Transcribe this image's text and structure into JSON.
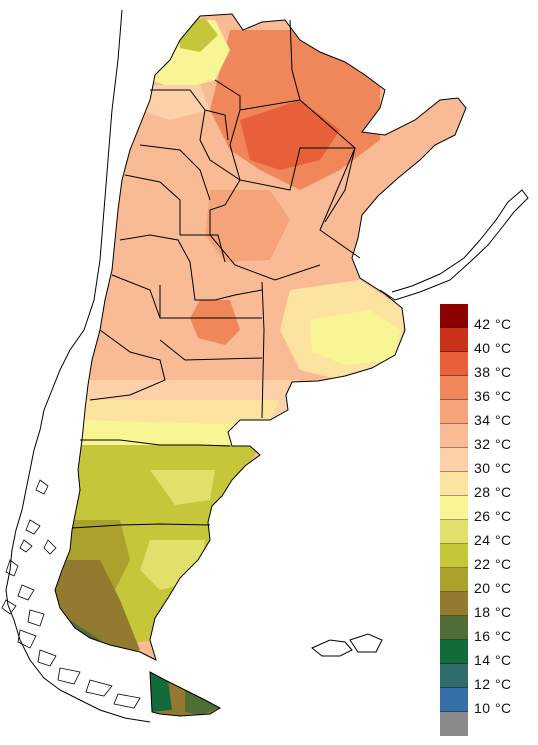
{
  "legend": {
    "items": [
      {
        "label": "42 °C",
        "color": "#8b0000"
      },
      {
        "label": "40 °C",
        "color": "#c83218"
      },
      {
        "label": "38 °C",
        "color": "#e8603a"
      },
      {
        "label": "36 °C",
        "color": "#f0875a"
      },
      {
        "label": "34 °C",
        "color": "#f5a47a"
      },
      {
        "label": "32 °C",
        "color": "#f8bb96"
      },
      {
        "label": "30 °C",
        "color": "#fcd0a8"
      },
      {
        "label": "28 °C",
        "color": "#fde3a0"
      },
      {
        "label": "26 °C",
        "color": "#f7f594"
      },
      {
        "label": "24 °C",
        "color": "#e0e06a"
      },
      {
        "label": "22 °C",
        "color": "#c6c63a"
      },
      {
        "label": "20 °C",
        "color": "#aaa22c"
      },
      {
        "label": "18 °C",
        "color": "#937a30"
      },
      {
        "label": "16 °C",
        "color": "#4f6e36"
      },
      {
        "label": "14 °C",
        "color": "#116b3b"
      },
      {
        "label": "12 °C",
        "color": "#2f6b6a"
      },
      {
        "label": "10 °C",
        "color": "#3670a8"
      },
      {
        "label": "",
        "color": "#8a8a8a"
      }
    ]
  },
  "colors": {
    "border": "#000000",
    "background": "#ffffff"
  }
}
